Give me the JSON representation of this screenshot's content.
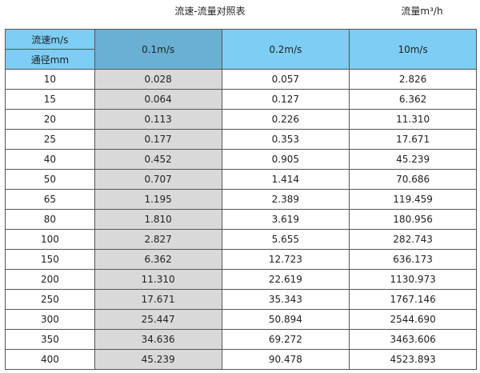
{
  "title": "流速-流量对照表",
  "unit": "流量m³/h",
  "header": {
    "speed_label": "流速m/s",
    "diameter_label": "通径mm",
    "columns": [
      "0.1m/s",
      "0.2m/s",
      "10m/s"
    ]
  },
  "colors": {
    "header": "#7dcdf4",
    "header_highlight": "#6ab0d4",
    "highlight_column": "#d9d9d9"
  },
  "rows": [
    [
      "10",
      "0.028",
      "0.057",
      "2.826"
    ],
    [
      "15",
      "0.064",
      "0.127",
      "6.362"
    ],
    [
      "20",
      "0.113",
      "0.226",
      "11.310"
    ],
    [
      "25",
      "0.177",
      "0.353",
      "17.671"
    ],
    [
      "40",
      "0.452",
      "0.905",
      "45.239"
    ],
    [
      "50",
      "0.707",
      "1.414",
      "70.686"
    ],
    [
      "65",
      "1.195",
      "2.389",
      "119.459"
    ],
    [
      "80",
      "1.810",
      "3.619",
      "180.956"
    ],
    [
      "100",
      "2.827",
      "5.655",
      "282.743"
    ],
    [
      "150",
      "6.362",
      "12.723",
      "636.173"
    ],
    [
      "200",
      "11.310",
      "22.619",
      "1130.973"
    ],
    [
      "250",
      "17.671",
      "35.343",
      "1767.146"
    ],
    [
      "300",
      "25.447",
      "50.894",
      "2544.690"
    ],
    [
      "350",
      "34.636",
      "69.272",
      "3463.606"
    ],
    [
      "400",
      "45.239",
      "90.478",
      "4523.893"
    ]
  ]
}
